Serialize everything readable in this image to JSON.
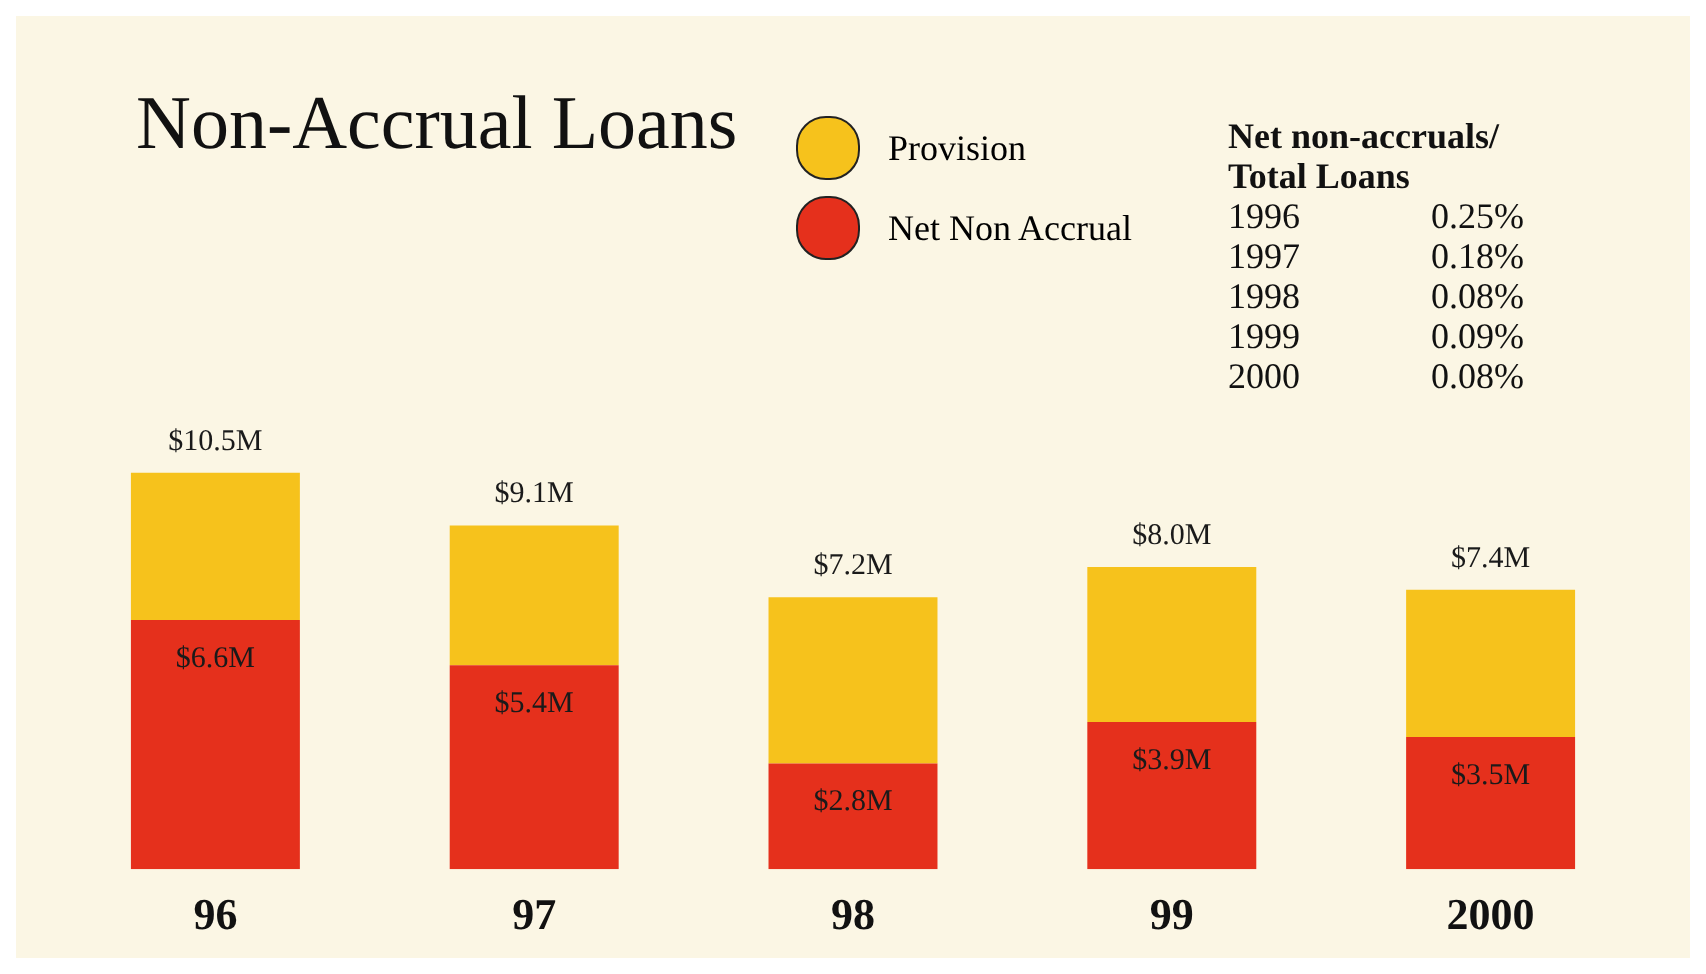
{
  "chart_data": {
    "type": "bar",
    "title": "Non-Accrual Loans",
    "stacked": true,
    "legend": "top",
    "categories": [
      "96",
      "97",
      "98",
      "99",
      "2000"
    ],
    "series": [
      {
        "name": "Net Non Accrual",
        "color": "#e5301c",
        "values": [
          6.6,
          5.4,
          2.8,
          3.9,
          3.5
        ],
        "value_labels": [
          "$6.6M",
          "$5.4M",
          "$2.8M",
          "$3.9M",
          "$3.5M"
        ]
      },
      {
        "name": "Provision",
        "color": "#f6c21c",
        "values": [
          3.9,
          3.7,
          4.4,
          4.1,
          3.9
        ]
      }
    ],
    "totals": [
      "$10.5M",
      "$9.1M",
      "$7.2M",
      "$8.0M",
      "$7.4M"
    ],
    "annotations": [
      "Net non-accruals/\nTotal Loans",
      "1996 0.25%",
      "1997 0.18%",
      "1998 0.08%",
      "1999 0.09%",
      "2000 0.08%"
    ]
  }
}
